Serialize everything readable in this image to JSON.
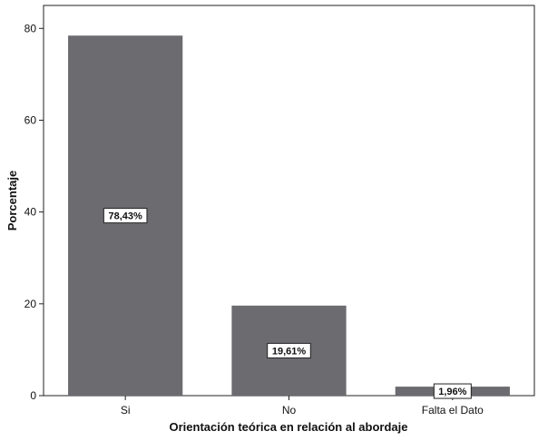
{
  "chart_data": {
    "type": "bar",
    "title": "",
    "xlabel": "Orientación teórica en relación al abordaje",
    "ylabel": "Porcentaje",
    "ylim": [
      0,
      85
    ],
    "yticks": [
      0,
      20,
      40,
      60,
      80
    ],
    "categories": [
      "Si",
      "No",
      "Falta el Dato"
    ],
    "values": [
      78.43,
      19.61,
      1.96
    ],
    "data_labels": [
      "78,43%",
      "19,61%",
      "1,96%"
    ],
    "grid": false,
    "bar_color": "#6b6b70"
  }
}
